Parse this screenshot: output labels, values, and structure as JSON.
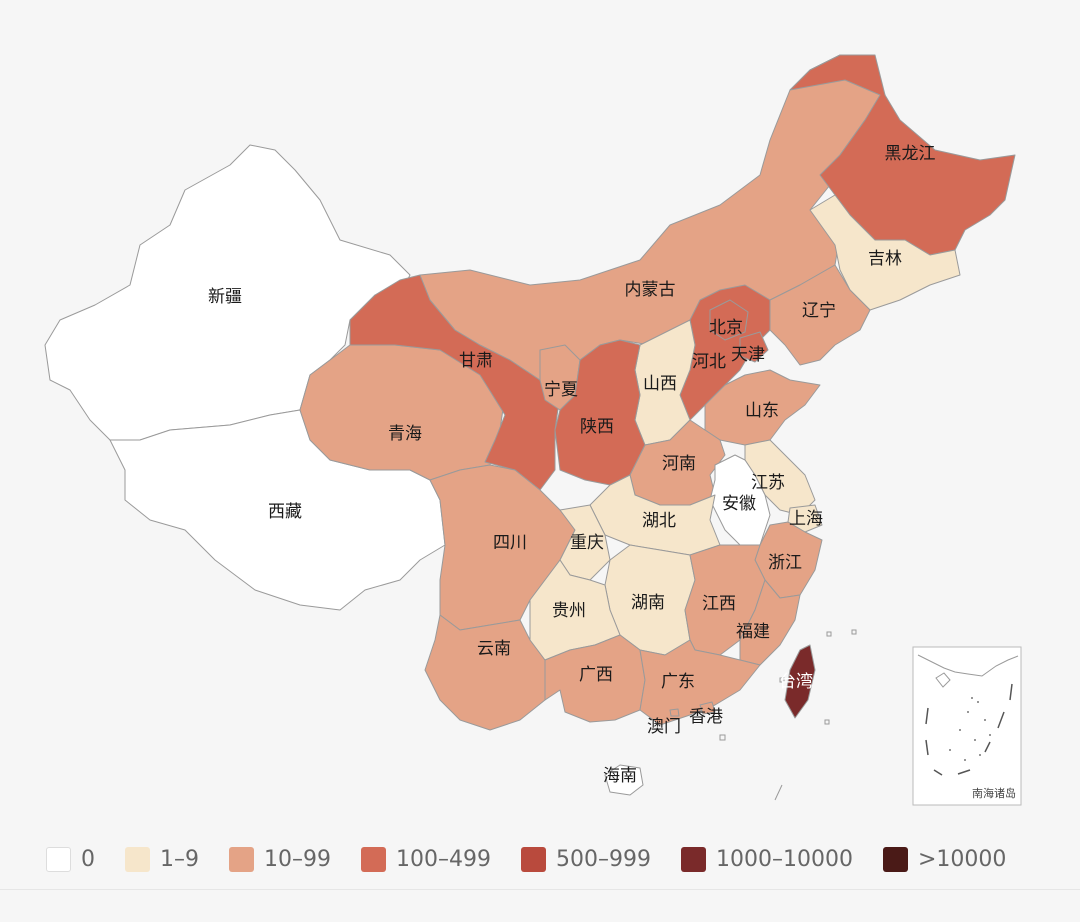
{
  "colors": {
    "c0": "#ffffff",
    "c1": "#f6e6cb",
    "c2": "#e4a386",
    "c3": "#d36b56",
    "c4": "#b94a3d",
    "c5": "#7a2a2a",
    "c6": "#4a1a17"
  },
  "legend": [
    {
      "label": "0",
      "color": "#ffffff"
    },
    {
      "label": "1–9",
      "color": "#f6e6cb"
    },
    {
      "label": "10–99",
      "color": "#e4a386"
    },
    {
      "label": "100–499",
      "color": "#d36b56"
    },
    {
      "label": "500–999",
      "color": "#b94a3d"
    },
    {
      "label": "1000–10000",
      "color": "#7a2a2a"
    },
    {
      "label": ">10000",
      "color": "#4a1a17"
    }
  ],
  "provinces": {
    "xinjiang": {
      "name": "新疆",
      "band": "0"
    },
    "xizang": {
      "name": "西藏",
      "band": "0"
    },
    "qinghai": {
      "name": "青海",
      "band": "10–99"
    },
    "gansu": {
      "name": "甘肃",
      "band": "100–499"
    },
    "neimenggu": {
      "name": "内蒙古",
      "band": "10–99"
    },
    "heilongjiang": {
      "name": "黑龙江",
      "band": "100–499"
    },
    "jilin": {
      "name": "吉林",
      "band": "1–9"
    },
    "liaoning": {
      "name": "辽宁",
      "band": "10–99"
    },
    "beijing": {
      "name": "北京",
      "band": "100–499"
    },
    "tianjin": {
      "name": "天津",
      "band": "100–499"
    },
    "hebei": {
      "name": "河北",
      "band": "100–499"
    },
    "shanxi": {
      "name": "山西",
      "band": "1–9"
    },
    "shandong": {
      "name": "山东",
      "band": "10–99"
    },
    "ningxia": {
      "name": "宁夏",
      "band": "10–99"
    },
    "shaanxi": {
      "name": "陕西",
      "band": "100–499"
    },
    "henan": {
      "name": "河南",
      "band": "10–99"
    },
    "jiangsu": {
      "name": "江苏",
      "band": "1–9"
    },
    "anhui": {
      "name": "安徽",
      "band": "0"
    },
    "shanghai": {
      "name": "上海",
      "band": "1–9"
    },
    "hubei": {
      "name": "湖北",
      "band": "1–9"
    },
    "sichuan": {
      "name": "四川",
      "band": "10–99"
    },
    "chongqing": {
      "name": "重庆",
      "band": "1–9"
    },
    "zhejiang": {
      "name": "浙江",
      "band": "10–99"
    },
    "guizhou": {
      "name": "贵州",
      "band": "1–9"
    },
    "hunan": {
      "name": "湖南",
      "band": "1–9"
    },
    "jiangxi": {
      "name": "江西",
      "band": "10–99"
    },
    "fujian": {
      "name": "福建",
      "band": "10–99"
    },
    "yunnan": {
      "name": "云南",
      "band": "10–99"
    },
    "guangxi": {
      "name": "广西",
      "band": "10–99"
    },
    "guangdong": {
      "name": "广东",
      "band": "10–99"
    },
    "taiwan": {
      "name": "台湾",
      "band": "1000–10000"
    },
    "xianggang": {
      "name": "香港",
      "band": "10–99"
    },
    "aomen": {
      "name": "澳门",
      "band": "10–99"
    },
    "hainan": {
      "name": "海南",
      "band": "0"
    }
  },
  "inset": {
    "label": "南海诸岛"
  }
}
